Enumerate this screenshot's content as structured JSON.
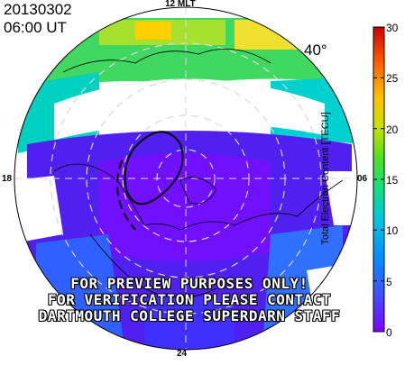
{
  "header": {
    "date": "20130302",
    "time": "06:00  UT"
  },
  "latitude_label": "40°",
  "mlt_labels": {
    "top": "12 MLT",
    "left": "18",
    "right": "06",
    "bottom": "24"
  },
  "watermark": {
    "line1": "FOR PREVIEW PURPOSES ONLY!",
    "line2": "FOR VERIFICATION PLEASE CONTACT",
    "line3": "DARTMOUTH COLLEGE SUPERDARN STAFF"
  },
  "colorbar": {
    "title": "Total Electron Content [TECU]",
    "min": 0,
    "max": 30,
    "ticks": [
      "0",
      "5",
      "10",
      "15",
      "20",
      "25",
      "30"
    ],
    "colors": [
      "#8000ff",
      "#4040ff",
      "#0090ff",
      "#00d0d0",
      "#20e060",
      "#a0e020",
      "#ffe000",
      "#ff8000",
      "#ff0000",
      "#c00000"
    ]
  },
  "colors": {
    "boundary": "#000000",
    "grid": "#cccccc"
  }
}
